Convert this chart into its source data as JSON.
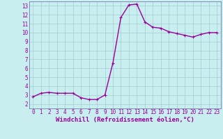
{
  "x": [
    0,
    1,
    2,
    3,
    4,
    5,
    6,
    7,
    8,
    9,
    10,
    11,
    12,
    13,
    14,
    15,
    16,
    17,
    18,
    19,
    20,
    21,
    22,
    23
  ],
  "y": [
    2.8,
    3.2,
    3.3,
    3.2,
    3.2,
    3.2,
    2.7,
    2.5,
    2.5,
    3.0,
    6.6,
    11.7,
    13.1,
    13.2,
    11.2,
    10.6,
    10.5,
    10.1,
    9.9,
    9.7,
    9.5,
    9.8,
    10.0,
    10.0
  ],
  "line_color": "#990099",
  "marker": "+",
  "marker_size": 3,
  "bg_color": "#c8eef0",
  "grid_color": "#a0ccd0",
  "xlabel": "Windchill (Refroidissement éolien,°C)",
  "xlim": [
    -0.5,
    23.5
  ],
  "ylim": [
    1.5,
    13.5
  ],
  "xticks": [
    0,
    1,
    2,
    3,
    4,
    5,
    6,
    7,
    8,
    9,
    10,
    11,
    12,
    13,
    14,
    15,
    16,
    17,
    18,
    19,
    20,
    21,
    22,
    23
  ],
  "yticks": [
    2,
    3,
    4,
    5,
    6,
    7,
    8,
    9,
    10,
    11,
    12,
    13
  ],
  "tick_fontsize": 5.5,
  "xlabel_fontsize": 6.5,
  "line_width": 1.0,
  "spine_color": "#7777aa"
}
